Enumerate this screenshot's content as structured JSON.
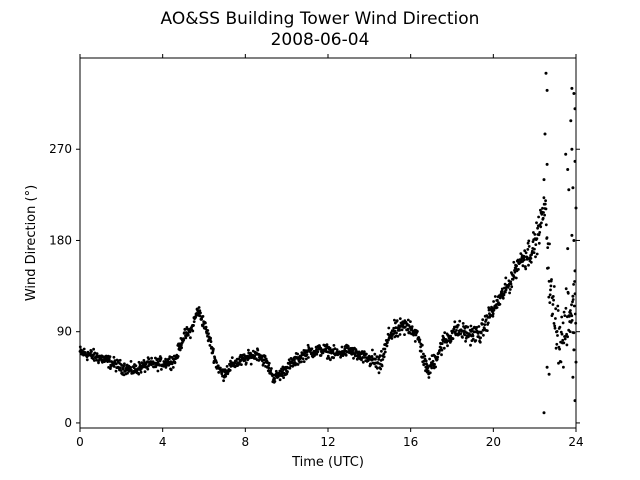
{
  "chart_data": {
    "type": "scatter",
    "title": "AO&SS Building Tower Wind Direction",
    "subtitle": "2008-06-04",
    "xlabel": "Time (UTC)",
    "ylabel": "Wind Direction (°)",
    "xlim": [
      0,
      24
    ],
    "ylim": [
      -5,
      360
    ],
    "xticks": [
      0,
      4,
      8,
      12,
      16,
      20,
      24
    ],
    "yticks": [
      0,
      90,
      180,
      270
    ],
    "grid": false,
    "marker_color": "#000000",
    "trend": [
      [
        0.0,
        70
      ],
      [
        1.0,
        64
      ],
      [
        2.0,
        55
      ],
      [
        2.6,
        52
      ],
      [
        3.2,
        57
      ],
      [
        4.0,
        59
      ],
      [
        4.6,
        62
      ],
      [
        5.0,
        85
      ],
      [
        5.4,
        92
      ],
      [
        5.7,
        112
      ],
      [
        6.0,
        98
      ],
      [
        6.3,
        80
      ],
      [
        6.6,
        58
      ],
      [
        6.9,
        48
      ],
      [
        7.4,
        58
      ],
      [
        8.0,
        63
      ],
      [
        8.6,
        69
      ],
      [
        9.0,
        60
      ],
      [
        9.4,
        44
      ],
      [
        9.8,
        50
      ],
      [
        10.2,
        58
      ],
      [
        11.0,
        70
      ],
      [
        11.8,
        72
      ],
      [
        12.4,
        68
      ],
      [
        13.0,
        72
      ],
      [
        13.6,
        65
      ],
      [
        14.2,
        62
      ],
      [
        14.5,
        55
      ],
      [
        15.0,
        88
      ],
      [
        15.6,
        94
      ],
      [
        16.0,
        96
      ],
      [
        16.4,
        82
      ],
      [
        16.8,
        50
      ],
      [
        17.1,
        60
      ],
      [
        17.6,
        80
      ],
      [
        18.2,
        92
      ],
      [
        18.8,
        88
      ],
      [
        19.4,
        88
      ],
      [
        19.8,
        106
      ],
      [
        20.3,
        122
      ],
      [
        20.8,
        138
      ],
      [
        21.2,
        158
      ],
      [
        21.6,
        166
      ],
      [
        22.0,
        175
      ],
      [
        22.3,
        198
      ],
      [
        22.5,
        215
      ],
      [
        22.8,
        120
      ],
      [
        23.3,
        80
      ],
      [
        23.6,
        100
      ],
      [
        24.0,
        120
      ]
    ],
    "outliers": [
      [
        22.55,
        345
      ],
      [
        22.6,
        328
      ],
      [
        22.5,
        285
      ],
      [
        22.45,
        10
      ],
      [
        22.6,
        55
      ],
      [
        23.8,
        330
      ],
      [
        23.9,
        325
      ],
      [
        23.75,
        298
      ],
      [
        23.95,
        310
      ],
      [
        23.8,
        270
      ],
      [
        23.95,
        258
      ],
      [
        23.85,
        232
      ],
      [
        24.0,
        212
      ],
      [
        23.9,
        180
      ],
      [
        23.8,
        185
      ],
      [
        23.6,
        172
      ],
      [
        23.95,
        150
      ],
      [
        23.85,
        125
      ],
      [
        23.7,
        100
      ],
      [
        23.9,
        72
      ],
      [
        24.0,
        60
      ],
      [
        23.85,
        45
      ],
      [
        23.95,
        22
      ],
      [
        22.7,
        48
      ],
      [
        23.5,
        265
      ],
      [
        23.6,
        250
      ],
      [
        23.65,
        230
      ],
      [
        22.45,
        240
      ],
      [
        22.6,
        255
      ]
    ]
  }
}
